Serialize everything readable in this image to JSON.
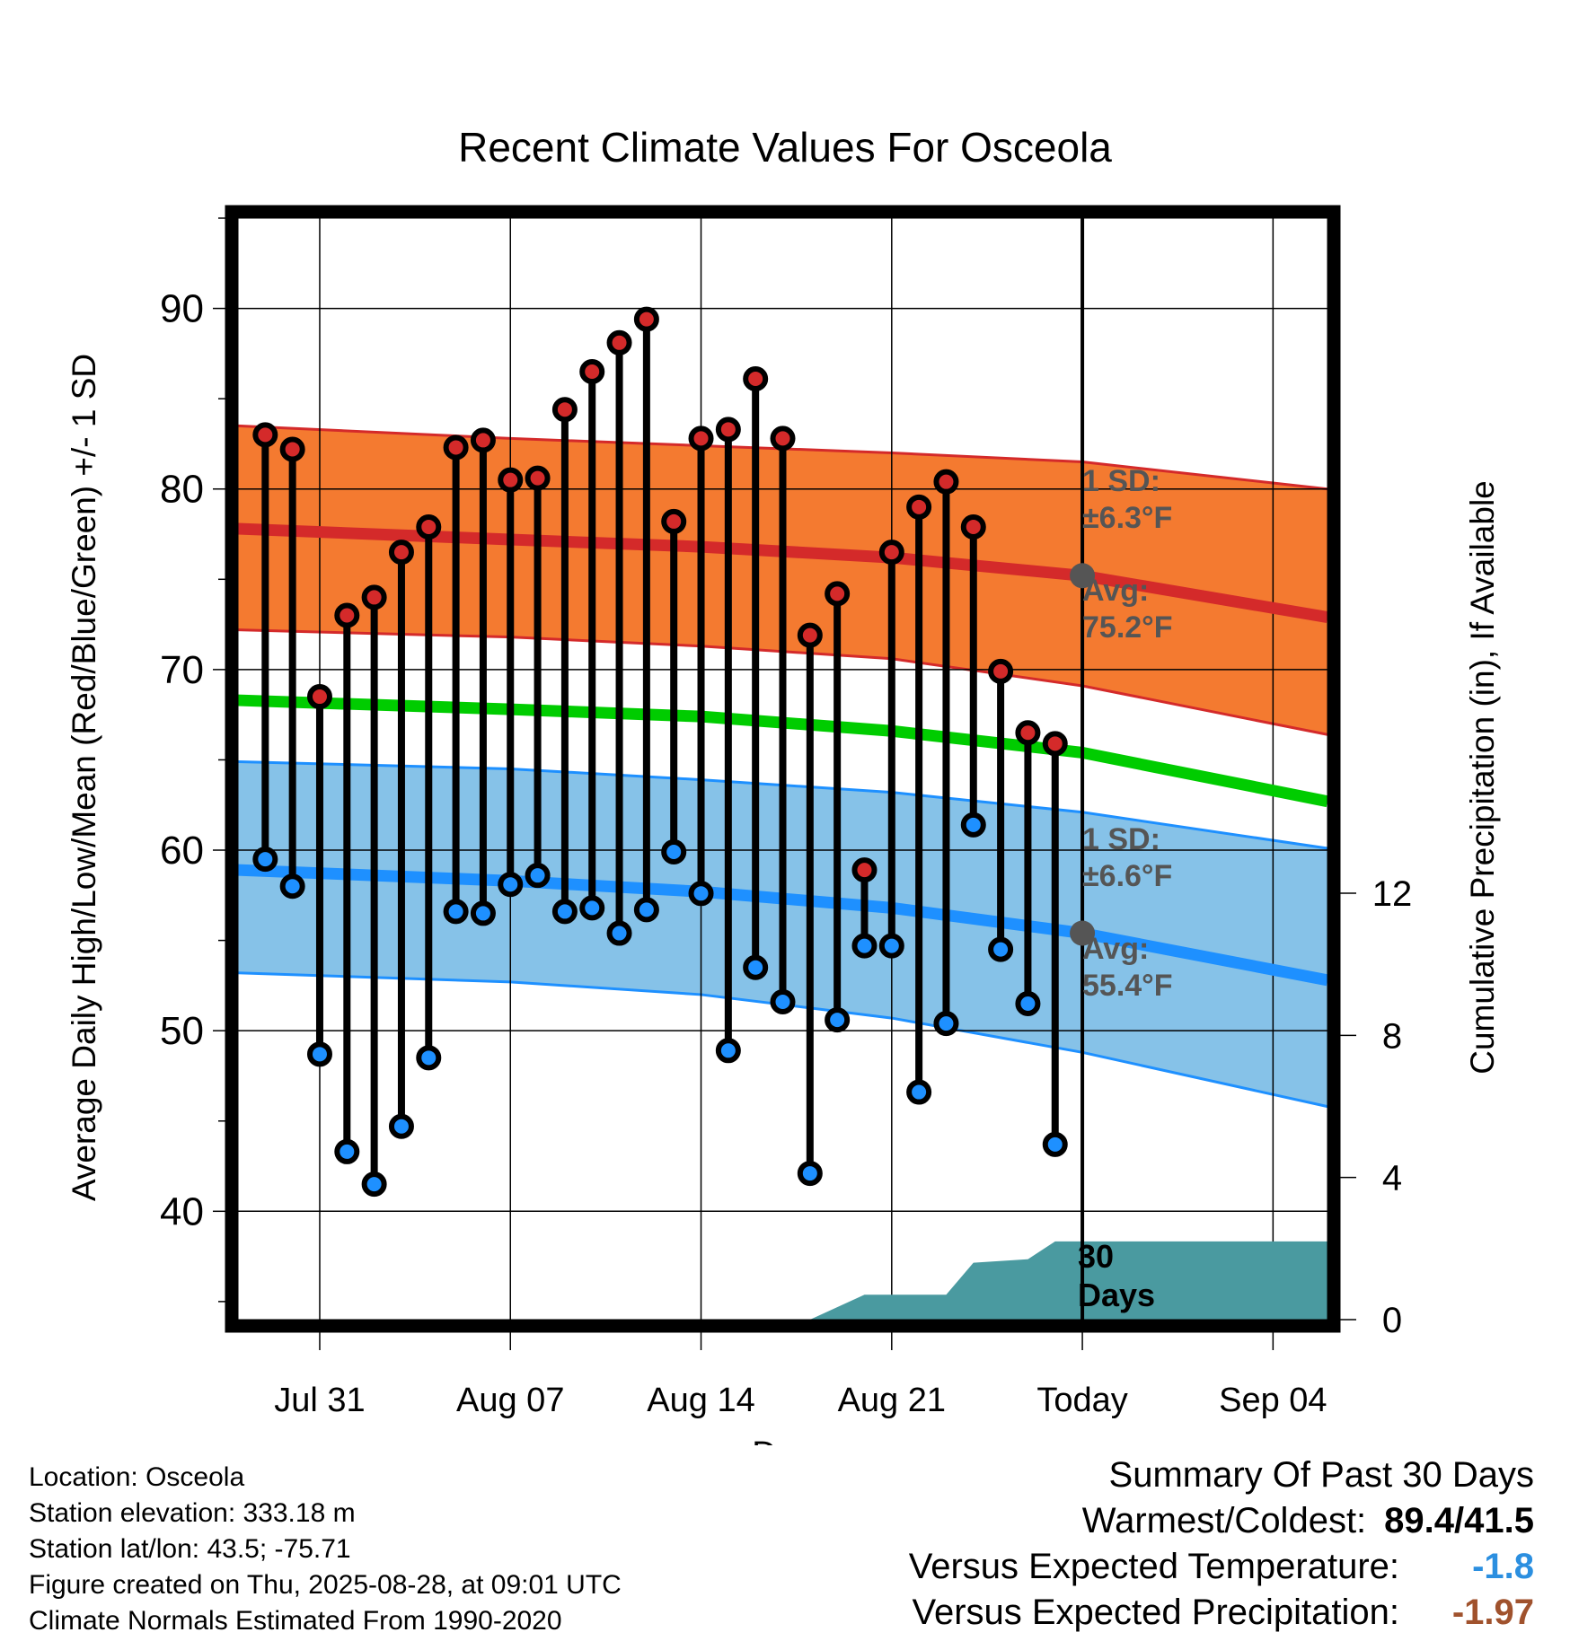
{
  "colors": {
    "high_band": "#f47a30",
    "high_line": "#d42a2a",
    "low_band": "#86c2e8",
    "low_line": "#1e90ff",
    "mean_line": "#00cc00",
    "precip": "#4a9aa0",
    "marker_grey": "#555555",
    "versus_temp": "#2b8fe0",
    "versus_precip": "#a0522d"
  },
  "chart_data": {
    "type": "line",
    "title": "Recent Climate Values For Osceola",
    "xlabel": "Day",
    "ylabel": "Average Daily High/Low/Mean (Red/Blue/Green) +/- 1 SD",
    "y2label": "Cumulative Precipitation (in), If Available",
    "ylim": [
      34,
      95
    ],
    "y2lim": [
      0,
      31
    ],
    "yticks": [
      "40",
      "50",
      "60",
      "70",
      "80",
      "90"
    ],
    "y2ticks": [
      "0",
      "4",
      "8",
      "12"
    ],
    "xlim": [
      "2025-07-28",
      "2025-09-06"
    ],
    "xticks": [
      {
        "date": "2025-07-31",
        "label": "Jul 31"
      },
      {
        "date": "2025-08-07",
        "label": "Aug 07"
      },
      {
        "date": "2025-08-14",
        "label": "Aug 14"
      },
      {
        "date": "2025-08-21",
        "label": "Aug 21"
      },
      {
        "date": "2025-08-28",
        "label": "Today"
      },
      {
        "date": "2025-09-04",
        "label": "Sep 04"
      }
    ],
    "today": "2025-08-28",
    "daily": [
      {
        "date": "2025-07-29",
        "high": 83.0,
        "low": 59.5
      },
      {
        "date": "2025-07-30",
        "high": 82.2,
        "low": 58.0
      },
      {
        "date": "2025-07-31",
        "high": 68.5,
        "low": 48.7
      },
      {
        "date": "2025-08-01",
        "high": 73.0,
        "low": 43.3
      },
      {
        "date": "2025-08-02",
        "high": 74.0,
        "low": 41.5
      },
      {
        "date": "2025-08-03",
        "high": 76.5,
        "low": 44.7
      },
      {
        "date": "2025-08-04",
        "high": 77.9,
        "low": 48.5
      },
      {
        "date": "2025-08-05",
        "high": 82.3,
        "low": 56.6
      },
      {
        "date": "2025-08-06",
        "high": 82.7,
        "low": 56.5
      },
      {
        "date": "2025-08-07",
        "high": 80.5,
        "low": 58.1
      },
      {
        "date": "2025-08-08",
        "high": 80.6,
        "low": 58.6
      },
      {
        "date": "2025-08-09",
        "high": 84.4,
        "low": 56.6
      },
      {
        "date": "2025-08-10",
        "high": 86.5,
        "low": 56.8
      },
      {
        "date": "2025-08-11",
        "high": 88.1,
        "low": 55.4
      },
      {
        "date": "2025-08-12",
        "high": 89.4,
        "low": 56.7
      },
      {
        "date": "2025-08-13",
        "high": 78.2,
        "low": 59.9
      },
      {
        "date": "2025-08-14",
        "high": 82.8,
        "low": 57.6
      },
      {
        "date": "2025-08-15",
        "high": 83.3,
        "low": 48.9
      },
      {
        "date": "2025-08-16",
        "high": 86.1,
        "low": 53.5
      },
      {
        "date": "2025-08-17",
        "high": 82.8,
        "low": 51.6
      },
      {
        "date": "2025-08-18",
        "high": 71.9,
        "low": 42.1
      },
      {
        "date": "2025-08-19",
        "high": 74.2,
        "low": 50.6
      },
      {
        "date": "2025-08-20",
        "high": 58.9,
        "low": 54.7
      },
      {
        "date": "2025-08-21",
        "high": null,
        "low": 54.7
      },
      {
        "date": "2025-08-22",
        "high": 79.0,
        "low": 46.6
      },
      {
        "date": "2025-08-23",
        "high": 80.4,
        "low": 50.4
      },
      {
        "date": "2025-08-24",
        "high": 77.9,
        "low": 61.4
      },
      {
        "date": "2025-08-25",
        "high": 69.9,
        "low": 54.5
      },
      {
        "date": "2025-08-26",
        "high": 66.5,
        "low": 51.5
      },
      {
        "date": "2025-08-27",
        "high": 65.9,
        "low": 43.7
      }
    ],
    "high_peak": {
      "date": "2025-08-21",
      "high": 76.5
    },
    "normals": {
      "x": [
        "2025-07-28",
        "2025-08-07",
        "2025-08-14",
        "2025-08-21",
        "2025-08-28",
        "2025-09-06"
      ],
      "high_avg": [
        77.8,
        77.2,
        76.8,
        76.2,
        75.2,
        72.9
      ],
      "high_upper": [
        83.5,
        82.8,
        82.4,
        82.0,
        81.5,
        80.0
      ],
      "high_lower": [
        72.2,
        71.8,
        71.3,
        70.6,
        69.1,
        66.4
      ],
      "mean_avg": [
        68.3,
        67.8,
        67.4,
        66.6,
        65.4,
        62.7
      ],
      "low_avg": [
        58.9,
        58.3,
        57.7,
        56.8,
        55.4,
        52.8
      ],
      "low_upper": [
        64.9,
        64.5,
        63.9,
        63.2,
        62.1,
        60.1
      ],
      "low_lower": [
        53.2,
        52.7,
        52.0,
        50.7,
        48.8,
        45.8
      ]
    },
    "precip_cumulative": [
      {
        "date": "2025-08-18",
        "value": 0.0
      },
      {
        "date": "2025-08-20",
        "value": 0.7
      },
      {
        "date": "2025-08-22",
        "value": 0.7
      },
      {
        "date": "2025-08-23",
        "value": 0.7
      },
      {
        "date": "2025-08-24",
        "value": 1.6
      },
      {
        "date": "2025-08-26",
        "value": 1.7
      },
      {
        "date": "2025-08-27",
        "value": 2.2
      },
      {
        "date": "2025-09-06",
        "value": 2.2
      }
    ],
    "annotations": {
      "high_sd_label": "1 SD:",
      "high_sd_value": "±6.3°F",
      "high_avg_label": "Avg:",
      "high_avg_value": "75.2°F",
      "low_sd_label": "1 SD:",
      "low_sd_value": "±6.6°F",
      "low_avg_label": "Avg:",
      "low_avg_value": "55.4°F",
      "precip_label_1": "30",
      "precip_label_2": "Days"
    }
  },
  "footer": {
    "location": "Location: Osceola",
    "elevation": "Station elevation: 333.18 m",
    "latlon": "Station lat/lon: 43.5; -75.71",
    "created": "Figure created on Thu, 2025-08-28, at 09:01 UTC",
    "normals": "Climate Normals Estimated From 1990-2020"
  },
  "summary": {
    "heading": "Summary Of Past 30 Days",
    "warmest_label": "Warmest/Coldest:",
    "warmest_value": "89.4/41.5",
    "temp_label": "Versus Expected Temperature:",
    "temp_value": "-1.8",
    "precip_label": "Versus Expected Precipitation:",
    "precip_value": "-1.97"
  }
}
